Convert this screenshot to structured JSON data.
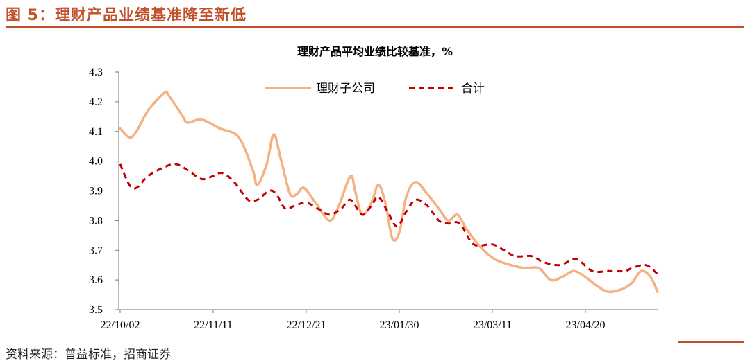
{
  "figure": {
    "title": "图 5：理财产品业绩基准降至新低",
    "source": "资料来源：普益标准，招商证券"
  },
  "colors": {
    "accent": "#c2502b",
    "subsidiary_line": "#f4b183",
    "total_line": "#c00000"
  },
  "chart_data": {
    "type": "line",
    "title": "理财产品平均业绩比较基准，%",
    "xlabel": "",
    "ylabel": "",
    "x_ticks": [
      "22/10/02",
      "22/11/11",
      "22/12/21",
      "23/01/30",
      "23/03/11",
      "23/04/20"
    ],
    "x_range": [
      "2022-10-02",
      "2023-05-24"
    ],
    "ylim": [
      3.5,
      4.3
    ],
    "y_ticks": [
      3.5,
      3.6,
      3.7,
      3.8,
      3.9,
      4.0,
      4.1,
      4.2,
      4.3
    ],
    "y_tick_labels": [
      "3.5",
      "3.6",
      "3.7",
      "3.8",
      "3.9",
      "4.0",
      "4.1",
      "4.2",
      "4.3"
    ],
    "grid": false,
    "legend_position": "top",
    "series": [
      {
        "name": "理财子公司",
        "style": "solid",
        "color": "#f4b183",
        "points": [
          [
            "2022-10-02",
            4.11
          ],
          [
            "2022-10-06",
            4.08
          ],
          [
            "2022-10-09",
            4.1
          ],
          [
            "2022-10-14",
            4.17
          ],
          [
            "2022-10-21",
            4.23
          ],
          [
            "2022-10-23",
            4.22
          ],
          [
            "2022-10-29",
            4.15
          ],
          [
            "2022-10-31",
            4.13
          ],
          [
            "2022-11-06",
            4.14
          ],
          [
            "2022-11-14",
            4.11
          ],
          [
            "2022-11-22",
            4.08
          ],
          [
            "2022-11-28",
            3.97
          ],
          [
            "2022-11-30",
            3.92
          ],
          [
            "2022-12-04",
            3.99
          ],
          [
            "2022-12-07",
            4.09
          ],
          [
            "2022-12-10",
            4.01
          ],
          [
            "2022-12-14",
            3.89
          ],
          [
            "2022-12-17",
            3.89
          ],
          [
            "2022-12-20",
            3.91
          ],
          [
            "2022-12-25",
            3.86
          ],
          [
            "2022-12-31",
            3.8
          ],
          [
            "2023-01-04",
            3.85
          ],
          [
            "2023-01-09",
            3.95
          ],
          [
            "2023-01-11",
            3.9
          ],
          [
            "2023-01-14",
            3.82
          ],
          [
            "2023-01-18",
            3.86
          ],
          [
            "2023-01-21",
            3.92
          ],
          [
            "2023-01-24",
            3.86
          ],
          [
            "2023-01-27",
            3.74
          ],
          [
            "2023-01-30",
            3.76
          ],
          [
            "2023-02-02",
            3.88
          ],
          [
            "2023-02-06",
            3.93
          ],
          [
            "2023-02-11",
            3.89
          ],
          [
            "2023-02-16",
            3.84
          ],
          [
            "2023-02-20",
            3.8
          ],
          [
            "2023-02-24",
            3.82
          ],
          [
            "2023-02-28",
            3.77
          ],
          [
            "2023-03-06",
            3.71
          ],
          [
            "2023-03-12",
            3.67
          ],
          [
            "2023-03-19",
            3.65
          ],
          [
            "2023-03-25",
            3.64
          ],
          [
            "2023-03-31",
            3.64
          ],
          [
            "2023-04-05",
            3.6
          ],
          [
            "2023-04-10",
            3.61
          ],
          [
            "2023-04-15",
            3.63
          ],
          [
            "2023-04-20",
            3.61
          ],
          [
            "2023-04-25",
            3.58
          ],
          [
            "2023-04-30",
            3.56
          ],
          [
            "2023-05-06",
            3.57
          ],
          [
            "2023-05-10",
            3.59
          ],
          [
            "2023-05-14",
            3.63
          ],
          [
            "2023-05-18",
            3.61
          ],
          [
            "2023-05-21",
            3.56
          ]
        ]
      },
      {
        "name": "合计",
        "style": "dashed",
        "color": "#c00000",
        "points": [
          [
            "2022-10-02",
            3.99
          ],
          [
            "2022-10-06",
            3.92
          ],
          [
            "2022-10-09",
            3.91
          ],
          [
            "2022-10-14",
            3.95
          ],
          [
            "2022-10-21",
            3.98
          ],
          [
            "2022-10-26",
            3.99
          ],
          [
            "2022-10-31",
            3.97
          ],
          [
            "2022-11-06",
            3.94
          ],
          [
            "2022-11-11",
            3.95
          ],
          [
            "2022-11-15",
            3.96
          ],
          [
            "2022-11-20",
            3.93
          ],
          [
            "2022-11-26",
            3.87
          ],
          [
            "2022-11-30",
            3.87
          ],
          [
            "2022-12-05",
            3.9
          ],
          [
            "2022-12-08",
            3.89
          ],
          [
            "2022-12-12",
            3.84
          ],
          [
            "2022-12-16",
            3.85
          ],
          [
            "2022-12-21",
            3.86
          ],
          [
            "2022-12-26",
            3.84
          ],
          [
            "2022-12-31",
            3.82
          ],
          [
            "2023-01-05",
            3.84
          ],
          [
            "2023-01-09",
            3.87
          ],
          [
            "2023-01-14",
            3.82
          ],
          [
            "2023-01-18",
            3.85
          ],
          [
            "2023-01-21",
            3.88
          ],
          [
            "2023-01-25",
            3.83
          ],
          [
            "2023-01-29",
            3.78
          ],
          [
            "2023-02-02",
            3.83
          ],
          [
            "2023-02-06",
            3.87
          ],
          [
            "2023-02-11",
            3.85
          ],
          [
            "2023-02-16",
            3.8
          ],
          [
            "2023-02-20",
            3.79
          ],
          [
            "2023-02-25",
            3.79
          ],
          [
            "2023-03-03",
            3.72
          ],
          [
            "2023-03-11",
            3.72
          ],
          [
            "2023-03-16",
            3.7
          ],
          [
            "2023-03-21",
            3.68
          ],
          [
            "2023-03-28",
            3.68
          ],
          [
            "2023-04-02",
            3.66
          ],
          [
            "2023-04-09",
            3.65
          ],
          [
            "2023-04-16",
            3.67
          ],
          [
            "2023-04-23",
            3.63
          ],
          [
            "2023-04-30",
            3.63
          ],
          [
            "2023-05-07",
            3.63
          ],
          [
            "2023-05-10",
            3.64
          ],
          [
            "2023-05-16",
            3.65
          ],
          [
            "2023-05-21",
            3.62
          ]
        ]
      }
    ]
  }
}
